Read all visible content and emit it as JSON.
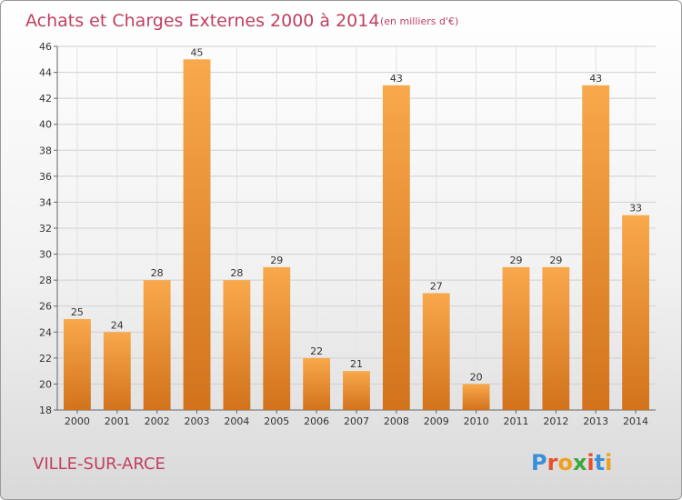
{
  "chart_data": {
    "type": "bar",
    "title": "Achats et Charges Externes 2000 à 2014",
    "subtitle": "(en milliers d'€)",
    "categories": [
      "2000",
      "2001",
      "2002",
      "2003",
      "2004",
      "2005",
      "2006",
      "2007",
      "2008",
      "2009",
      "2010",
      "2011",
      "2012",
      "2013",
      "2014"
    ],
    "values": [
      25,
      24,
      28,
      45,
      28,
      29,
      22,
      21,
      43,
      27,
      20,
      29,
      29,
      43,
      33
    ],
    "ylim": [
      18,
      46
    ],
    "yticks": [
      18,
      20,
      22,
      24,
      26,
      28,
      30,
      32,
      34,
      36,
      38,
      40,
      42,
      44,
      46
    ],
    "grid": true,
    "bar_color_light": "#f9a84c",
    "bar_color_dark": "#d2731c"
  },
  "footer": {
    "city": "VILLE-SUR-ARCE",
    "logo_letters": [
      "P",
      "r",
      "o",
      "x",
      "i",
      "t",
      "i"
    ],
    "logo_colors": [
      "#3a8fd8",
      "#e8502a",
      "#f0a020",
      "#3aa83a",
      "#e8502a",
      "#3a8fd8",
      "#f0a020"
    ]
  }
}
